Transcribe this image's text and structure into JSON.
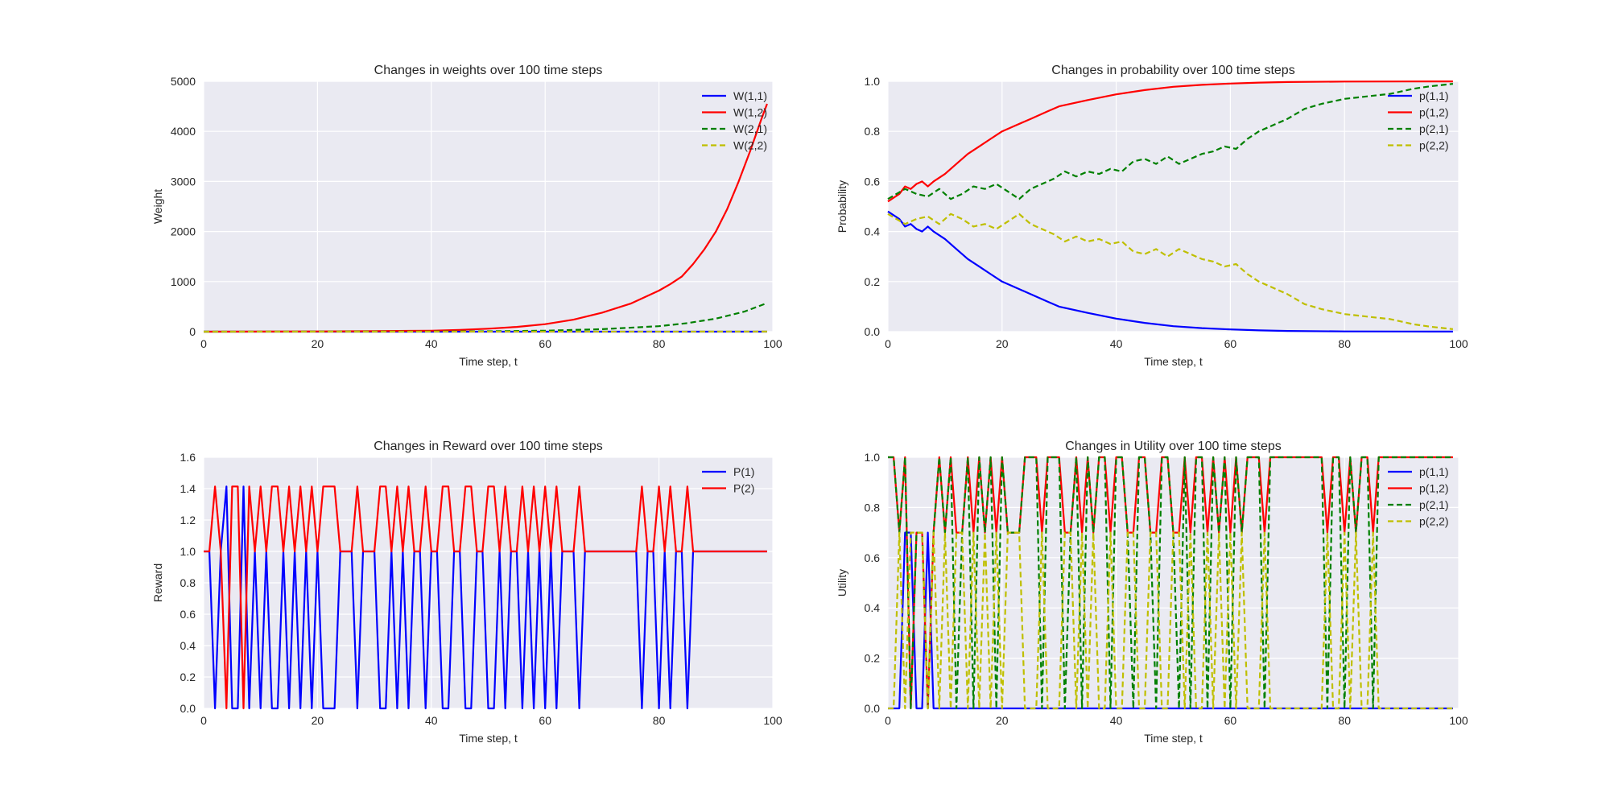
{
  "figure": {
    "background": "#ffffff",
    "plot_bg": "#EAEAF2",
    "grid_color": "#ffffff",
    "colors": {
      "blue": "#0000ff",
      "red": "#ff0000",
      "green": "#008000",
      "yellow": "#bfbf00"
    }
  },
  "chart_data": [
    {
      "type": "line",
      "title": "Changes in weights over 100 time steps",
      "xlabel": "Time step, t",
      "ylabel": "Weight",
      "xlim": [
        0,
        100
      ],
      "ylim": [
        0,
        5000
      ],
      "xticks": [
        0,
        20,
        40,
        60,
        80,
        100
      ],
      "yticks": [
        0,
        1000,
        2000,
        3000,
        4000,
        5000
      ],
      "grid": true,
      "legend_position": "top-right",
      "series": [
        {
          "name": "W(1,1)",
          "color": "#0000ff",
          "dash": "solid",
          "x": [
            0,
            99
          ],
          "y": [
            0,
            0
          ]
        },
        {
          "name": "W(1,2)",
          "color": "#ff0000",
          "dash": "solid",
          "x": [
            0,
            20,
            30,
            40,
            45,
            50,
            55,
            60,
            65,
            70,
            75,
            80,
            82,
            84,
            86,
            88,
            90,
            92,
            94,
            96,
            98,
            99
          ],
          "y": [
            0,
            5,
            10,
            20,
            35,
            60,
            95,
            150,
            240,
            380,
            560,
            820,
            950,
            1100,
            1350,
            1650,
            2000,
            2450,
            3000,
            3600,
            4250,
            4550
          ]
        },
        {
          "name": "W(2,1)",
          "color": "#008000",
          "dash": "dashed",
          "x": [
            0,
            40,
            50,
            60,
            70,
            80,
            85,
            90,
            95,
            99
          ],
          "y": [
            0,
            3,
            8,
            20,
            50,
            110,
            170,
            260,
            400,
            570
          ]
        },
        {
          "name": "W(2,2)",
          "color": "#bfbf00",
          "dash": "dashed",
          "x": [
            0,
            99
          ],
          "y": [
            0,
            2
          ]
        }
      ]
    },
    {
      "type": "line",
      "title": "Changes in probability over 100 time steps",
      "xlabel": "Time step, t",
      "ylabel": "Probability",
      "xlim": [
        0,
        100
      ],
      "ylim": [
        0,
        1.0
      ],
      "xticks": [
        0,
        20,
        40,
        60,
        80,
        100
      ],
      "yticks": [
        0.0,
        0.2,
        0.4,
        0.6,
        0.8,
        1.0
      ],
      "grid": true,
      "legend_position": "top-right",
      "series": [
        {
          "name": "p(1,1)",
          "color": "#0000ff",
          "dash": "solid",
          "x": [
            0,
            2,
            3,
            4,
            5,
            6,
            7,
            8,
            10,
            12,
            14,
            16,
            18,
            20,
            22,
            25,
            28,
            30,
            35,
            40,
            45,
            50,
            55,
            60,
            65,
            70,
            80,
            90,
            99
          ],
          "y": [
            0.48,
            0.45,
            0.42,
            0.43,
            0.41,
            0.4,
            0.42,
            0.4,
            0.37,
            0.33,
            0.29,
            0.26,
            0.23,
            0.2,
            0.18,
            0.15,
            0.12,
            0.1,
            0.075,
            0.052,
            0.035,
            0.022,
            0.014,
            0.009,
            0.005,
            0.003,
            0.001,
            0.0005,
            0.0002
          ]
        },
        {
          "name": "p(1,2)",
          "color": "#ff0000",
          "dash": "solid",
          "x": [
            0,
            2,
            3,
            4,
            5,
            6,
            7,
            8,
            10,
            12,
            14,
            16,
            18,
            20,
            22,
            25,
            28,
            30,
            35,
            40,
            45,
            50,
            55,
            60,
            65,
            70,
            80,
            90,
            99
          ],
          "y": [
            0.52,
            0.55,
            0.58,
            0.57,
            0.59,
            0.6,
            0.58,
            0.6,
            0.63,
            0.67,
            0.71,
            0.74,
            0.77,
            0.8,
            0.82,
            0.85,
            0.88,
            0.9,
            0.925,
            0.948,
            0.965,
            0.978,
            0.986,
            0.991,
            0.995,
            0.997,
            0.999,
            0.9995,
            0.9998
          ]
        },
        {
          "name": "p(2,1)",
          "color": "#008000",
          "dash": "dashed",
          "x": [
            0,
            3,
            5,
            7,
            9,
            11,
            13,
            15,
            17,
            19,
            21,
            23,
            25,
            27,
            29,
            31,
            33,
            35,
            37,
            39,
            41,
            43,
            45,
            47,
            49,
            51,
            53,
            55,
            57,
            59,
            61,
            63,
            65,
            67,
            70,
            73,
            76,
            80,
            84,
            88,
            92,
            95,
            99
          ],
          "y": [
            0.53,
            0.57,
            0.55,
            0.54,
            0.57,
            0.53,
            0.55,
            0.58,
            0.57,
            0.59,
            0.56,
            0.53,
            0.57,
            0.59,
            0.61,
            0.64,
            0.62,
            0.64,
            0.63,
            0.65,
            0.64,
            0.68,
            0.69,
            0.67,
            0.7,
            0.67,
            0.69,
            0.71,
            0.72,
            0.74,
            0.73,
            0.77,
            0.8,
            0.82,
            0.85,
            0.89,
            0.91,
            0.93,
            0.94,
            0.95,
            0.97,
            0.98,
            0.99
          ]
        },
        {
          "name": "p(2,2)",
          "color": "#bfbf00",
          "dash": "dashed",
          "x": [
            0,
            3,
            5,
            7,
            9,
            11,
            13,
            15,
            17,
            19,
            21,
            23,
            25,
            27,
            29,
            31,
            33,
            35,
            37,
            39,
            41,
            43,
            45,
            47,
            49,
            51,
            53,
            55,
            57,
            59,
            61,
            63,
            65,
            67,
            70,
            73,
            76,
            80,
            84,
            88,
            92,
            95,
            99
          ],
          "y": [
            0.47,
            0.43,
            0.45,
            0.46,
            0.43,
            0.47,
            0.45,
            0.42,
            0.43,
            0.41,
            0.44,
            0.47,
            0.43,
            0.41,
            0.39,
            0.36,
            0.38,
            0.36,
            0.37,
            0.35,
            0.36,
            0.32,
            0.31,
            0.33,
            0.3,
            0.33,
            0.31,
            0.29,
            0.28,
            0.26,
            0.27,
            0.23,
            0.2,
            0.18,
            0.15,
            0.11,
            0.09,
            0.07,
            0.06,
            0.05,
            0.03,
            0.02,
            0.01
          ]
        }
      ]
    },
    {
      "type": "line",
      "title": "Changes in Reward over 100 time steps",
      "xlabel": "Time step, t",
      "ylabel": "Reward",
      "xlim": [
        0,
        100
      ],
      "ylim": [
        0,
        1.6
      ],
      "xticks": [
        0,
        20,
        40,
        60,
        80,
        100
      ],
      "yticks": [
        0.0,
        0.2,
        0.4,
        0.6,
        0.8,
        1.0,
        1.2,
        1.4,
        1.6
      ],
      "grid": true,
      "legend_position": "top-right",
      "series": [
        {
          "name": "P(1)",
          "color": "#0000ff",
          "dash": "solid",
          "y": [
            1,
            1,
            0,
            1,
            1.414,
            0,
            0,
            1.414,
            0,
            1,
            0,
            1,
            0,
            0,
            1,
            0,
            1,
            0,
            1,
            0,
            1,
            0,
            0,
            0,
            1,
            1,
            1,
            0,
            1,
            1,
            1,
            0,
            0,
            1,
            0,
            1,
            0,
            1,
            1,
            0,
            1,
            1,
            0,
            0,
            1,
            1,
            0,
            0,
            1,
            1,
            0,
            0,
            1,
            0,
            1,
            1,
            0,
            1,
            0,
            1,
            0,
            1,
            0,
            1,
            1,
            1,
            0,
            1,
            1,
            1,
            1,
            1,
            1,
            1,
            1,
            1,
            1,
            0,
            1,
            1,
            0,
            1,
            0,
            1,
            1,
            0,
            1,
            1,
            1,
            1,
            1,
            1,
            1,
            1,
            1,
            1,
            1,
            1,
            1,
            1
          ]
        },
        {
          "name": "P(2)",
          "color": "#ff0000",
          "dash": "solid",
          "y": [
            1,
            1,
            1.414,
            1,
            0,
            1.414,
            1.414,
            0,
            1.414,
            1,
            1.414,
            1,
            1.414,
            1.414,
            1,
            1.414,
            1,
            1.414,
            1,
            1.414,
            1,
            1.414,
            1.414,
            1.414,
            1,
            1,
            1,
            1.414,
            1,
            1,
            1,
            1.414,
            1.414,
            1,
            1.414,
            1,
            1.414,
            1,
            1,
            1.414,
            1,
            1,
            1.414,
            1.414,
            1,
            1,
            1.414,
            1.414,
            1,
            1,
            1.414,
            1.414,
            1,
            1.414,
            1,
            1,
            1.414,
            1,
            1.414,
            1,
            1.414,
            1,
            1.414,
            1,
            1,
            1,
            1.414,
            1,
            1,
            1,
            1,
            1,
            1,
            1,
            1,
            1,
            1,
            1.414,
            1,
            1,
            1.414,
            1,
            1.414,
            1,
            1,
            1.414,
            1,
            1,
            1,
            1,
            1,
            1,
            1,
            1,
            1,
            1,
            1,
            1,
            1,
            1
          ]
        }
      ]
    },
    {
      "type": "line",
      "title": "Changes in Utility over 100 time steps",
      "xlabel": "Time step, t",
      "ylabel": "Utility",
      "xlim": [
        0,
        100
      ],
      "ylim": [
        0,
        1.0
      ],
      "xticks": [
        0,
        20,
        40,
        60,
        80,
        100
      ],
      "yticks": [
        0.0,
        0.2,
        0.4,
        0.6,
        0.8,
        1.0
      ],
      "grid": true,
      "legend_position": "top-right",
      "series": [
        {
          "name": "p(1,1)",
          "color": "#0000ff",
          "dash": "solid",
          "y": [
            0,
            0,
            0,
            0.7,
            0.7,
            0,
            0,
            0.7,
            0,
            0,
            0,
            0,
            0,
            0,
            0,
            0,
            0,
            0,
            0,
            0,
            0,
            0,
            0,
            0,
            0,
            0,
            0,
            0,
            0,
            0,
            0,
            0,
            0,
            0,
            0,
            0,
            0,
            0,
            0,
            0,
            0,
            0,
            0,
            0,
            0,
            0,
            0,
            0,
            0,
            0,
            0,
            0,
            0,
            0,
            0,
            0,
            0,
            0,
            0,
            0,
            0,
            0,
            0,
            0,
            0,
            0,
            0,
            0,
            0,
            0,
            0,
            0,
            0,
            0,
            0,
            0,
            0,
            0,
            0,
            0,
            0,
            0,
            0,
            0,
            0,
            0,
            0,
            0,
            0,
            0,
            0,
            0,
            0,
            0,
            0,
            0,
            0,
            0,
            0,
            0
          ]
        },
        {
          "name": "p(1,2)",
          "color": "#ff0000",
          "dash": "solid",
          "y": [
            1,
            1,
            0.7,
            1,
            0,
            0.7,
            0.7,
            0,
            0.7,
            1,
            0.7,
            1,
            0.7,
            0.7,
            1,
            0.7,
            1,
            0.7,
            1,
            0.7,
            1,
            0.7,
            0.7,
            0.7,
            1,
            1,
            1,
            0.7,
            1,
            1,
            1,
            0.7,
            0.7,
            1,
            0.7,
            1,
            0.7,
            1,
            1,
            0.7,
            1,
            1,
            0.7,
            0.7,
            1,
            1,
            0.7,
            0.7,
            1,
            1,
            0.7,
            0.7,
            1,
            0.7,
            1,
            1,
            0.7,
            1,
            0.7,
            1,
            0.7,
            1,
            0.7,
            1,
            1,
            1,
            0.7,
            1,
            1,
            1,
            1,
            1,
            1,
            1,
            1,
            1,
            1,
            0.7,
            1,
            1,
            0.7,
            1,
            0.7,
            1,
            1,
            0.7,
            1,
            1,
            1,
            1,
            1,
            1,
            1,
            1,
            1,
            1,
            1,
            1,
            1,
            1
          ]
        },
        {
          "name": "p(2,1)",
          "color": "#008000",
          "dash": "dashed",
          "y": [
            1,
            1,
            0.7,
            1,
            0,
            0.7,
            0.7,
            0,
            0.7,
            1,
            0.7,
            1,
            0,
            0.7,
            1,
            0,
            1,
            0.7,
            1,
            0,
            1,
            0.7,
            0.7,
            0.7,
            1,
            1,
            1,
            0,
            1,
            1,
            1,
            0,
            0.7,
            1,
            0,
            1,
            0.7,
            1,
            1,
            0,
            1,
            1,
            0.7,
            0,
            1,
            1,
            0.7,
            0,
            1,
            1,
            0.7,
            0,
            1,
            0,
            1,
            1,
            0,
            1,
            0.7,
            1,
            0,
            1,
            0.7,
            1,
            1,
            1,
            0,
            1,
            1,
            1,
            1,
            1,
            1,
            1,
            1,
            1,
            1,
            0,
            1,
            1,
            0,
            1,
            0.7,
            1,
            1,
            0,
            1,
            1,
            1,
            1,
            1,
            1,
            1,
            1,
            1,
            1,
            1,
            1,
            1,
            1
          ]
        },
        {
          "name": "p(2,2)",
          "color": "#bfbf00",
          "dash": "dashed",
          "y": [
            0,
            0,
            0.7,
            0,
            0.7,
            0.7,
            0.7,
            0,
            0.7,
            0,
            0.7,
            0,
            0.7,
            0.7,
            0,
            0.7,
            0,
            0.7,
            0,
            0.7,
            0,
            0.7,
            0.7,
            0.7,
            0,
            0,
            0,
            0.7,
            0,
            0,
            0,
            0.7,
            0.7,
            0,
            0.7,
            0,
            0.7,
            0,
            0,
            0.7,
            0,
            0,
            0.7,
            0.7,
            0,
            0,
            0.7,
            0.7,
            0,
            0,
            0.7,
            0.7,
            0,
            0.7,
            0,
            0,
            0.7,
            0,
            0.7,
            0,
            0.7,
            0,
            0.7,
            0,
            0,
            0,
            0.7,
            0,
            0,
            0,
            0,
            0,
            0,
            0,
            0,
            0,
            0,
            0.7,
            0,
            0,
            0.7,
            0,
            0.7,
            0,
            0,
            0.7,
            0,
            0,
            0,
            0,
            0,
            0,
            0,
            0,
            0,
            0,
            0,
            0,
            0,
            0
          ]
        }
      ]
    }
  ]
}
